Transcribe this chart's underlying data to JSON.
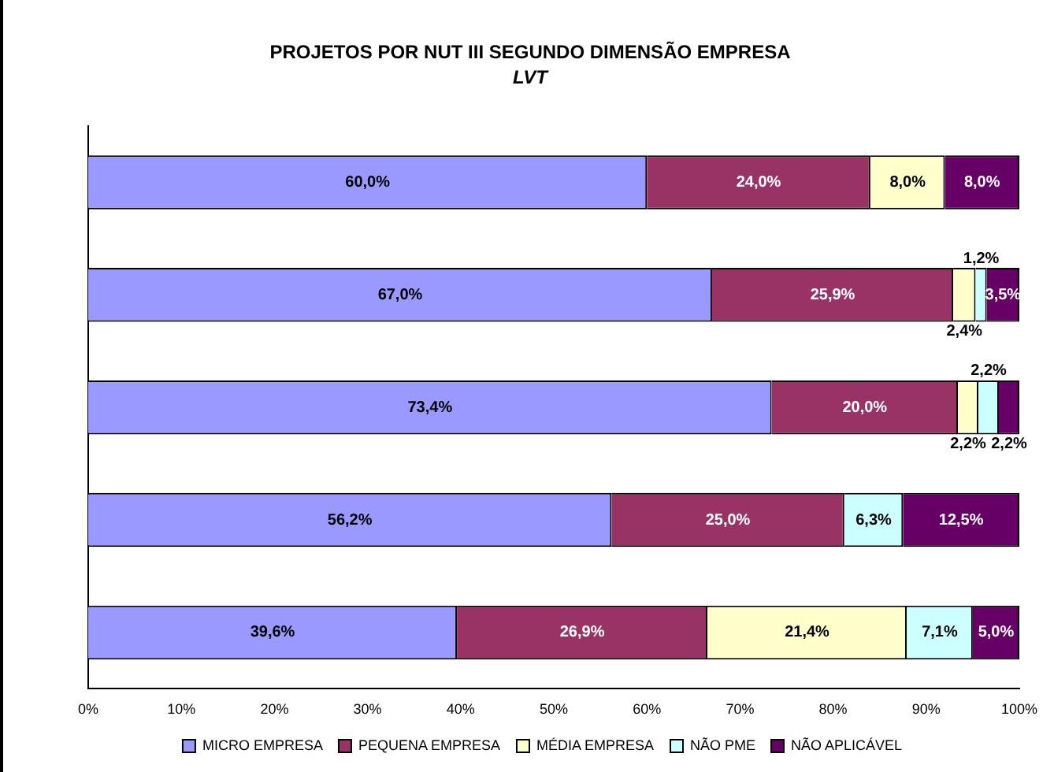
{
  "chart_data": {
    "type": "bar",
    "orientation": "horizontal",
    "stacked": true,
    "title": "PROJETOS POR NUT III SEGUNDO DIMENSÃO EMPRESA",
    "subtitle": "LVT",
    "categories": [
      null,
      null,
      null,
      null,
      null
    ],
    "series": [
      {
        "name": "MICRO EMPRESA",
        "color": "#9999ff",
        "values": [
          60.0,
          67.0,
          73.4,
          56.2,
          39.6
        ],
        "value_labels": [
          "60,0%",
          "67,0%",
          "73,4%",
          "56,2%",
          "39,6%"
        ]
      },
      {
        "name": "PEQUENA EMPRESA",
        "color": "#993366",
        "values": [
          24.0,
          25.9,
          20.0,
          25.0,
          26.9
        ],
        "value_labels": [
          "24,0%",
          "25,9%",
          "20,0%",
          "25,0%",
          "26,9%"
        ]
      },
      {
        "name": "MÉDIA EMPRESA",
        "color": "#ffffcc",
        "values": [
          8.0,
          2.4,
          2.2,
          null,
          21.4
        ],
        "value_labels": [
          "8,0%",
          "2,4%",
          "2,2%",
          null,
          "21,4%"
        ]
      },
      {
        "name": "NÃO PME",
        "color": "#ccffff",
        "values": [
          null,
          1.2,
          2.2,
          6.3,
          7.1
        ],
        "value_labels": [
          null,
          "1,2%",
          "2,2%",
          "6,3%",
          "7,1%"
        ]
      },
      {
        "name": "NÃO APLICÁVEL",
        "color": "#660066",
        "values": [
          8.0,
          3.5,
          2.2,
          12.5,
          5.0
        ],
        "value_labels": [
          "8,0%",
          "3,5%",
          "2,2%",
          "12,5%",
          "5,0%"
        ]
      }
    ],
    "xlim": [
      0,
      100
    ],
    "xticks": [
      {
        "value": 0,
        "label": "0%"
      },
      {
        "value": 10,
        "label": "10%"
      },
      {
        "value": 20,
        "label": "20%"
      },
      {
        "value": 30,
        "label": "30%"
      },
      {
        "value": 40,
        "label": "40%"
      },
      {
        "value": 50,
        "label": "50%"
      },
      {
        "value": 60,
        "label": "60%"
      },
      {
        "value": 70,
        "label": "70%"
      },
      {
        "value": 80,
        "label": "80%"
      },
      {
        "value": 90,
        "label": "90%"
      },
      {
        "value": 100,
        "label": "100%"
      }
    ],
    "legend": "bottom",
    "grid": false
  }
}
